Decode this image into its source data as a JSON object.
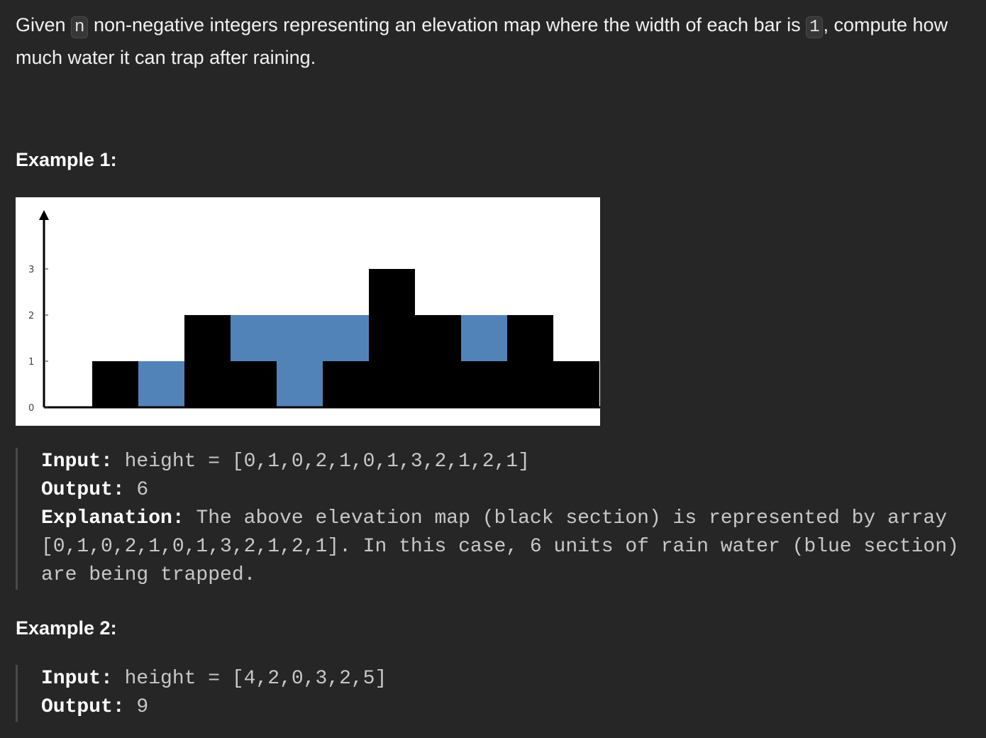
{
  "problem": {
    "text_before_n": "Given ",
    "n_code": "n",
    "text_after_n": " non-negative integers representing an elevation map where the width of each bar is ",
    "one_code": "1",
    "text_after_one": ", compute how much water it can trap after raining."
  },
  "example1": {
    "heading": "Example 1:",
    "input_label": "Input:",
    "input_value": " height = [0,1,0,2,1,0,1,3,2,1,2,1]",
    "output_label": "Output:",
    "output_value": " 6",
    "explanation_label": "Explanation:",
    "explanation_value": " The above elevation map (black section) is represented by array [0,1,0,2,1,0,1,3,2,1,2,1]. In this case, 6 units of rain water (blue section) are being trapped."
  },
  "example2": {
    "heading": "Example 2:",
    "input_label": "Input:",
    "input_value": " height = [4,2,0,3,2,5]",
    "output_label": "Output:",
    "output_value": " 9"
  },
  "chart_data": {
    "type": "bar",
    "title": "",
    "xlabel": "",
    "ylabel": "",
    "categories": [
      "",
      "",
      "",
      "",
      "",
      "",
      "",
      "",
      "",
      "",
      "",
      ""
    ],
    "series": [
      {
        "values": [
          0,
          1,
          0,
          2,
          1,
          0,
          1,
          3,
          2,
          1,
          2,
          1
        ]
      },
      {
        "values": [
          0,
          0,
          1,
          0,
          1,
          2,
          1,
          0,
          0,
          1,
          0,
          0
        ]
      }
    ],
    "stacked": true,
    "yticks": [
      "0",
      "1",
      "2",
      "3"
    ],
    "ylim": [
      0,
      3.5
    ],
    "grid": false,
    "colors": {
      "elevation": "#000000",
      "water": "#5283b8"
    }
  }
}
